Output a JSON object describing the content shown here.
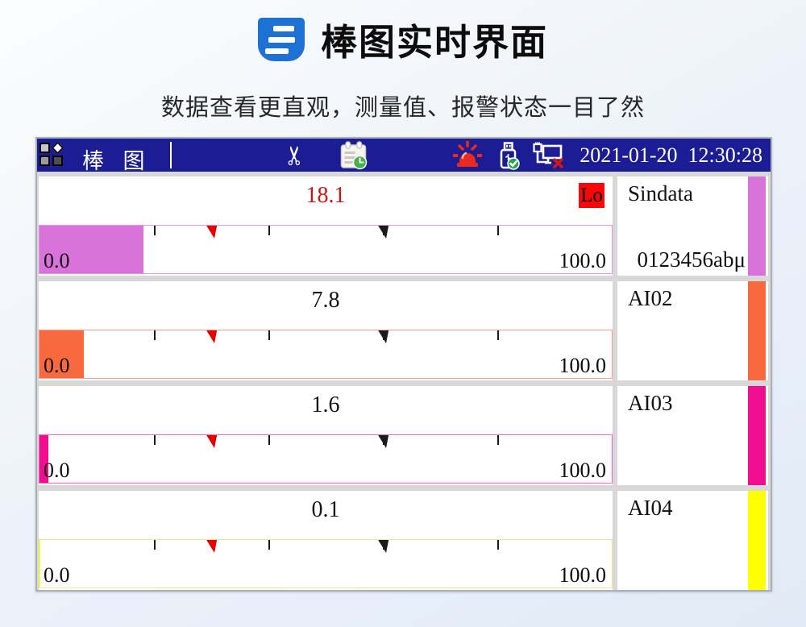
{
  "page": {
    "title": "棒图实时界面",
    "subtitle": "数据查看更直观，测量值、报警状态一目了然",
    "brand_color": "#1d71d3"
  },
  "titlebar": {
    "screen_name": "棒 图",
    "datetime": "2021-01-20  12:30:28",
    "background": "#1c1c94",
    "scissors_glyph": "✂"
  },
  "bar": {
    "ticks_percent": [
      20,
      40,
      60,
      80
    ],
    "markers": [
      {
        "name": "low-alarm-marker",
        "percent": 30,
        "color": "#e60000"
      },
      {
        "name": "high-alarm-marker",
        "percent": 60,
        "color": "#1a1a1a"
      }
    ]
  },
  "channels": [
    {
      "name": "Sindata",
      "unit": "0123456abμ",
      "value": "18.1",
      "value_color": "#cc1414",
      "alarm_badge": "Lo",
      "badge_bg": "#fb0606",
      "fill_percent": 18.1,
      "fill_color": "#d973d9",
      "border_color": "#ea8fea",
      "strip_color": "#d973d9",
      "scale_min": "0.0",
      "scale_max": "100.0"
    },
    {
      "name": "AI02",
      "unit": "",
      "value": "7.8",
      "value_color": "#141414",
      "alarm_badge": "",
      "badge_bg": "",
      "fill_percent": 7.8,
      "fill_color": "#f8693f",
      "border_color": "#fc9d82",
      "strip_color": "#f8693f",
      "scale_min": "0.0",
      "scale_max": "100.0"
    },
    {
      "name": "AI03",
      "unit": "",
      "value": "1.6",
      "value_color": "#141414",
      "alarm_badge": "",
      "badge_bg": "",
      "fill_percent": 1.6,
      "fill_color": "#f00d90",
      "border_color": "#fb64b8",
      "strip_color": "#f00d90",
      "scale_min": "0.0",
      "scale_max": "100.0"
    },
    {
      "name": "AI04",
      "unit": "",
      "value": "0.1",
      "value_color": "#141414",
      "alarm_badge": "",
      "badge_bg": "",
      "fill_percent": 0.1,
      "fill_color": "#ffff04",
      "border_color": "#ebeb8a",
      "strip_color": "#ffff04",
      "scale_min": "0.0",
      "scale_max": "100.0"
    }
  ],
  "chart_data": {
    "type": "bar",
    "orientation": "horizontal",
    "categories": [
      "Sindata",
      "AI02",
      "AI03",
      "AI04"
    ],
    "values": [
      18.1,
      7.8,
      1.6,
      0.1
    ],
    "xlim": [
      0.0,
      100.0
    ],
    "tick_values": [
      20,
      40,
      60,
      80
    ],
    "alarm_setpoints": {
      "low": 30,
      "high": 60
    },
    "alarm_states": [
      "Lo",
      "",
      "",
      ""
    ],
    "bar_colors": [
      "#d973d9",
      "#f8693f",
      "#f00d90",
      "#ffff04"
    ]
  }
}
